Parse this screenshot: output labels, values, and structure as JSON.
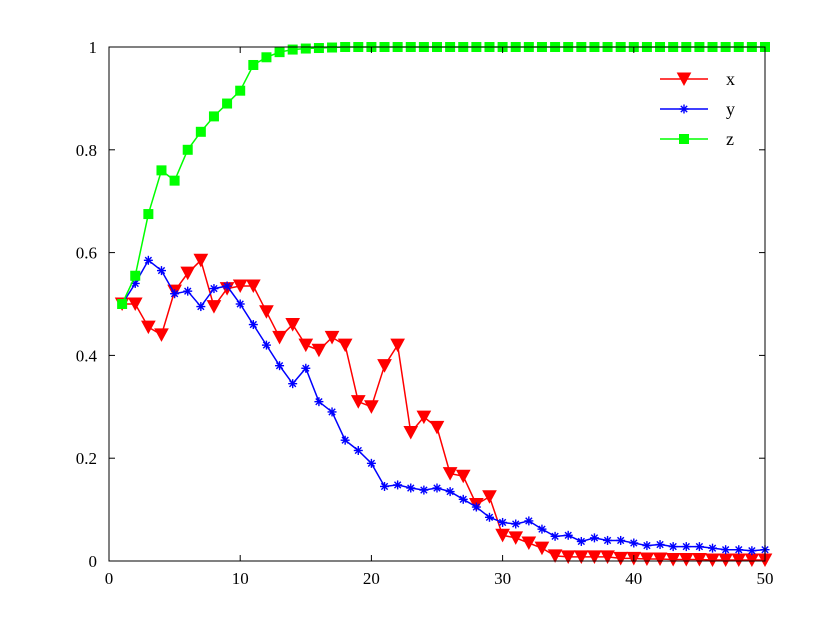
{
  "chart_data": {
    "type": "line",
    "title": "",
    "xlabel": "",
    "ylabel": "",
    "xlim": [
      0,
      50
    ],
    "ylim": [
      0,
      1
    ],
    "xticks": [
      0,
      10,
      20,
      30,
      40,
      50
    ],
    "xtick_labels": [
      "0",
      "10",
      "20",
      "30",
      "40",
      "50"
    ],
    "yticks": [
      0,
      0.2,
      0.4,
      0.6,
      0.8,
      1
    ],
    "ytick_labels": [
      "0",
      "0.2",
      "0.4",
      "0.6",
      "0.8",
      "1"
    ],
    "grid": false,
    "legend_position": "top-right",
    "x": [
      1,
      2,
      3,
      4,
      5,
      6,
      7,
      8,
      9,
      10,
      11,
      12,
      13,
      14,
      15,
      16,
      17,
      18,
      19,
      20,
      21,
      22,
      23,
      24,
      25,
      26,
      27,
      28,
      29,
      30,
      31,
      32,
      33,
      34,
      35,
      36,
      37,
      38,
      39,
      40,
      41,
      42,
      43,
      44,
      45,
      46,
      47,
      48,
      49,
      50
    ],
    "series": [
      {
        "name": "x",
        "color": "#ff0000",
        "marker": "triangle-down",
        "values": [
          0.5,
          0.5,
          0.455,
          0.44,
          0.525,
          0.56,
          0.585,
          0.495,
          0.53,
          0.535,
          0.535,
          0.485,
          0.435,
          0.46,
          0.42,
          0.41,
          0.435,
          0.42,
          0.31,
          0.3,
          0.38,
          0.42,
          0.25,
          0.28,
          0.26,
          0.17,
          0.165,
          0.11,
          0.125,
          0.05,
          0.045,
          0.035,
          0.025,
          0.01,
          0.008,
          0.008,
          0.008,
          0.008,
          0.005,
          0.005,
          0.004,
          0.004,
          0.003,
          0.003,
          0.003,
          0.002,
          0.002,
          0.002,
          0.002,
          0.002
        ]
      },
      {
        "name": "y",
        "color": "#0000ff",
        "marker": "asterisk",
        "values": [
          0.5,
          0.54,
          0.585,
          0.565,
          0.52,
          0.525,
          0.495,
          0.53,
          0.535,
          0.5,
          0.46,
          0.42,
          0.38,
          0.345,
          0.375,
          0.31,
          0.29,
          0.235,
          0.215,
          0.19,
          0.145,
          0.148,
          0.142,
          0.138,
          0.142,
          0.135,
          0.12,
          0.105,
          0.085,
          0.075,
          0.072,
          0.078,
          0.062,
          0.048,
          0.05,
          0.038,
          0.045,
          0.04,
          0.04,
          0.035,
          0.03,
          0.032,
          0.028,
          0.028,
          0.028,
          0.025,
          0.022,
          0.022,
          0.02,
          0.022
        ]
      },
      {
        "name": "z",
        "color": "#00ff00",
        "marker": "square",
        "values": [
          0.5,
          0.555,
          0.675,
          0.76,
          0.74,
          0.8,
          0.835,
          0.865,
          0.89,
          0.915,
          0.965,
          0.98,
          0.99,
          0.995,
          0.997,
          0.998,
          0.999,
          1,
          1,
          1,
          1,
          1,
          1,
          1,
          1,
          1,
          1,
          1,
          1,
          1,
          1,
          1,
          1,
          1,
          1,
          1,
          1,
          1,
          1,
          1,
          1,
          1,
          1,
          1,
          1,
          1,
          1,
          1,
          1,
          1
        ]
      }
    ]
  }
}
